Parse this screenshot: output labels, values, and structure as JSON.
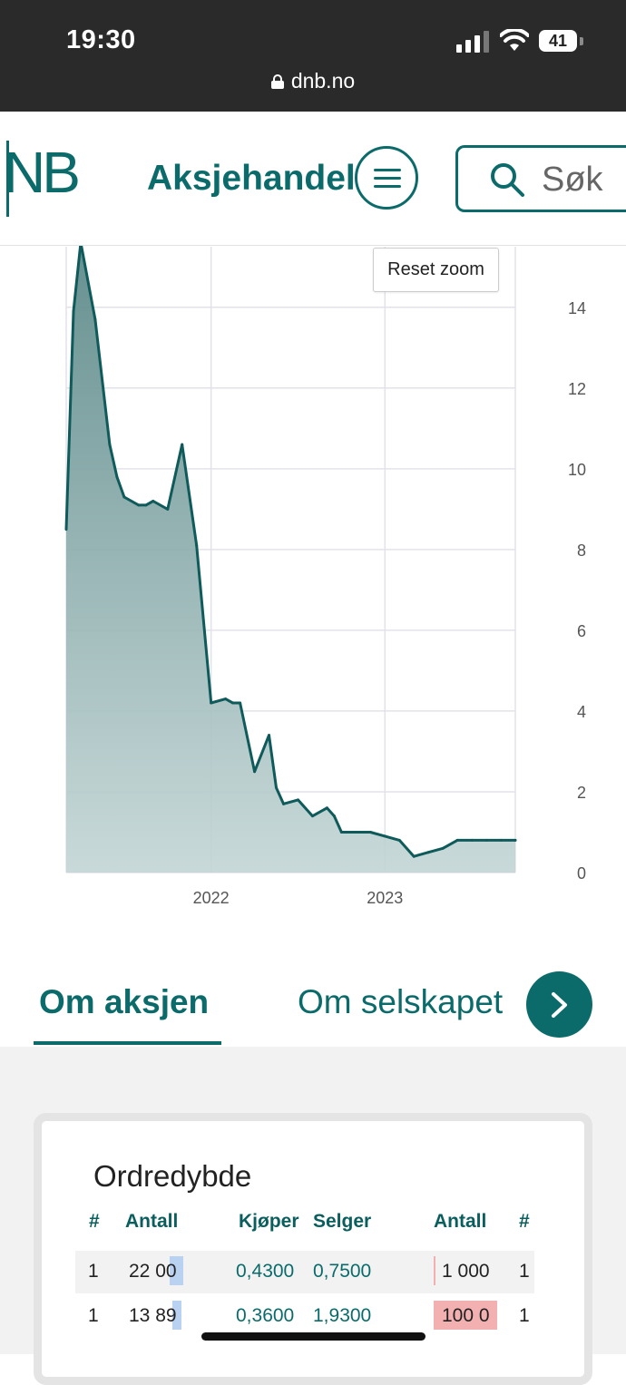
{
  "status_bar": {
    "time": "19:30",
    "battery": "41",
    "url": "dnb.no"
  },
  "header": {
    "logo_text": "NB",
    "title": "Aksjehandel",
    "search_label": "Søk"
  },
  "chart": {
    "reset_zoom_label": "Reset zoom"
  },
  "chart_data": {
    "type": "area",
    "x_tick_labels": [
      "2022",
      "2023"
    ],
    "y_tick_labels": [
      "0",
      "2",
      "4",
      "6",
      "8",
      "10",
      "12",
      "14"
    ],
    "ylim": [
      0,
      15.5
    ],
    "grid": true,
    "y_axis_position": "right",
    "series_color": "#0f5a5a",
    "x": [
      "2021-03",
      "2021-03",
      "2021-04",
      "2021-05",
      "2021-06",
      "2021-06",
      "2021-07",
      "2021-08",
      "2021-08",
      "2021-09",
      "2021-10",
      "2021-11",
      "2021-12",
      "2022-01",
      "2022-02",
      "2022-02",
      "2022-03",
      "2022-04",
      "2022-05",
      "2022-05",
      "2022-06",
      "2022-07",
      "2022-08",
      "2022-09",
      "2022-09",
      "2022-10",
      "2022-11",
      "2022-12",
      "2023-01",
      "2023-02",
      "2023-03",
      "2023-04",
      "2023-05",
      "2023-06",
      "2023-07",
      "2023-08",
      "2023-09",
      "2023-10",
      "2023-10"
    ],
    "values": [
      8.5,
      13.9,
      15.6,
      13.7,
      10.6,
      9.8,
      9.3,
      9.1,
      9.1,
      9.2,
      9.0,
      10.6,
      8.1,
      4.2,
      4.3,
      4.2,
      4.2,
      2.5,
      3.4,
      2.1,
      1.7,
      1.8,
      1.4,
      1.6,
      1.4,
      1.0,
      1.0,
      1.0,
      0.9,
      0.8,
      0.4,
      0.5,
      0.6,
      0.8,
      0.8,
      0.8,
      0.8,
      0.8,
      0.8
    ]
  },
  "tabs": [
    {
      "label": "Om aksjen",
      "active": true
    },
    {
      "label": "Om selskapet",
      "active": false
    }
  ],
  "order_depth": {
    "title": "Ordredybde",
    "headers": [
      "#",
      "Antall",
      "Kjøper",
      "Selger",
      "Antall",
      "#"
    ],
    "rows": [
      {
        "buy_count": "1",
        "buy_qty": "22 00",
        "buy_price": "0,4300",
        "sell_price": "0,7500",
        "sell_qty": "1 000",
        "sell_count": "1",
        "buy_fill": 0.09,
        "sell_fill": 0.01
      },
      {
        "buy_count": "1",
        "buy_qty": "13 89",
        "buy_price": "0,3600",
        "sell_price": "1,9300",
        "sell_qty": "100 0",
        "sell_count": "1",
        "buy_fill": 0.06,
        "sell_fill": 1.0
      }
    ]
  }
}
